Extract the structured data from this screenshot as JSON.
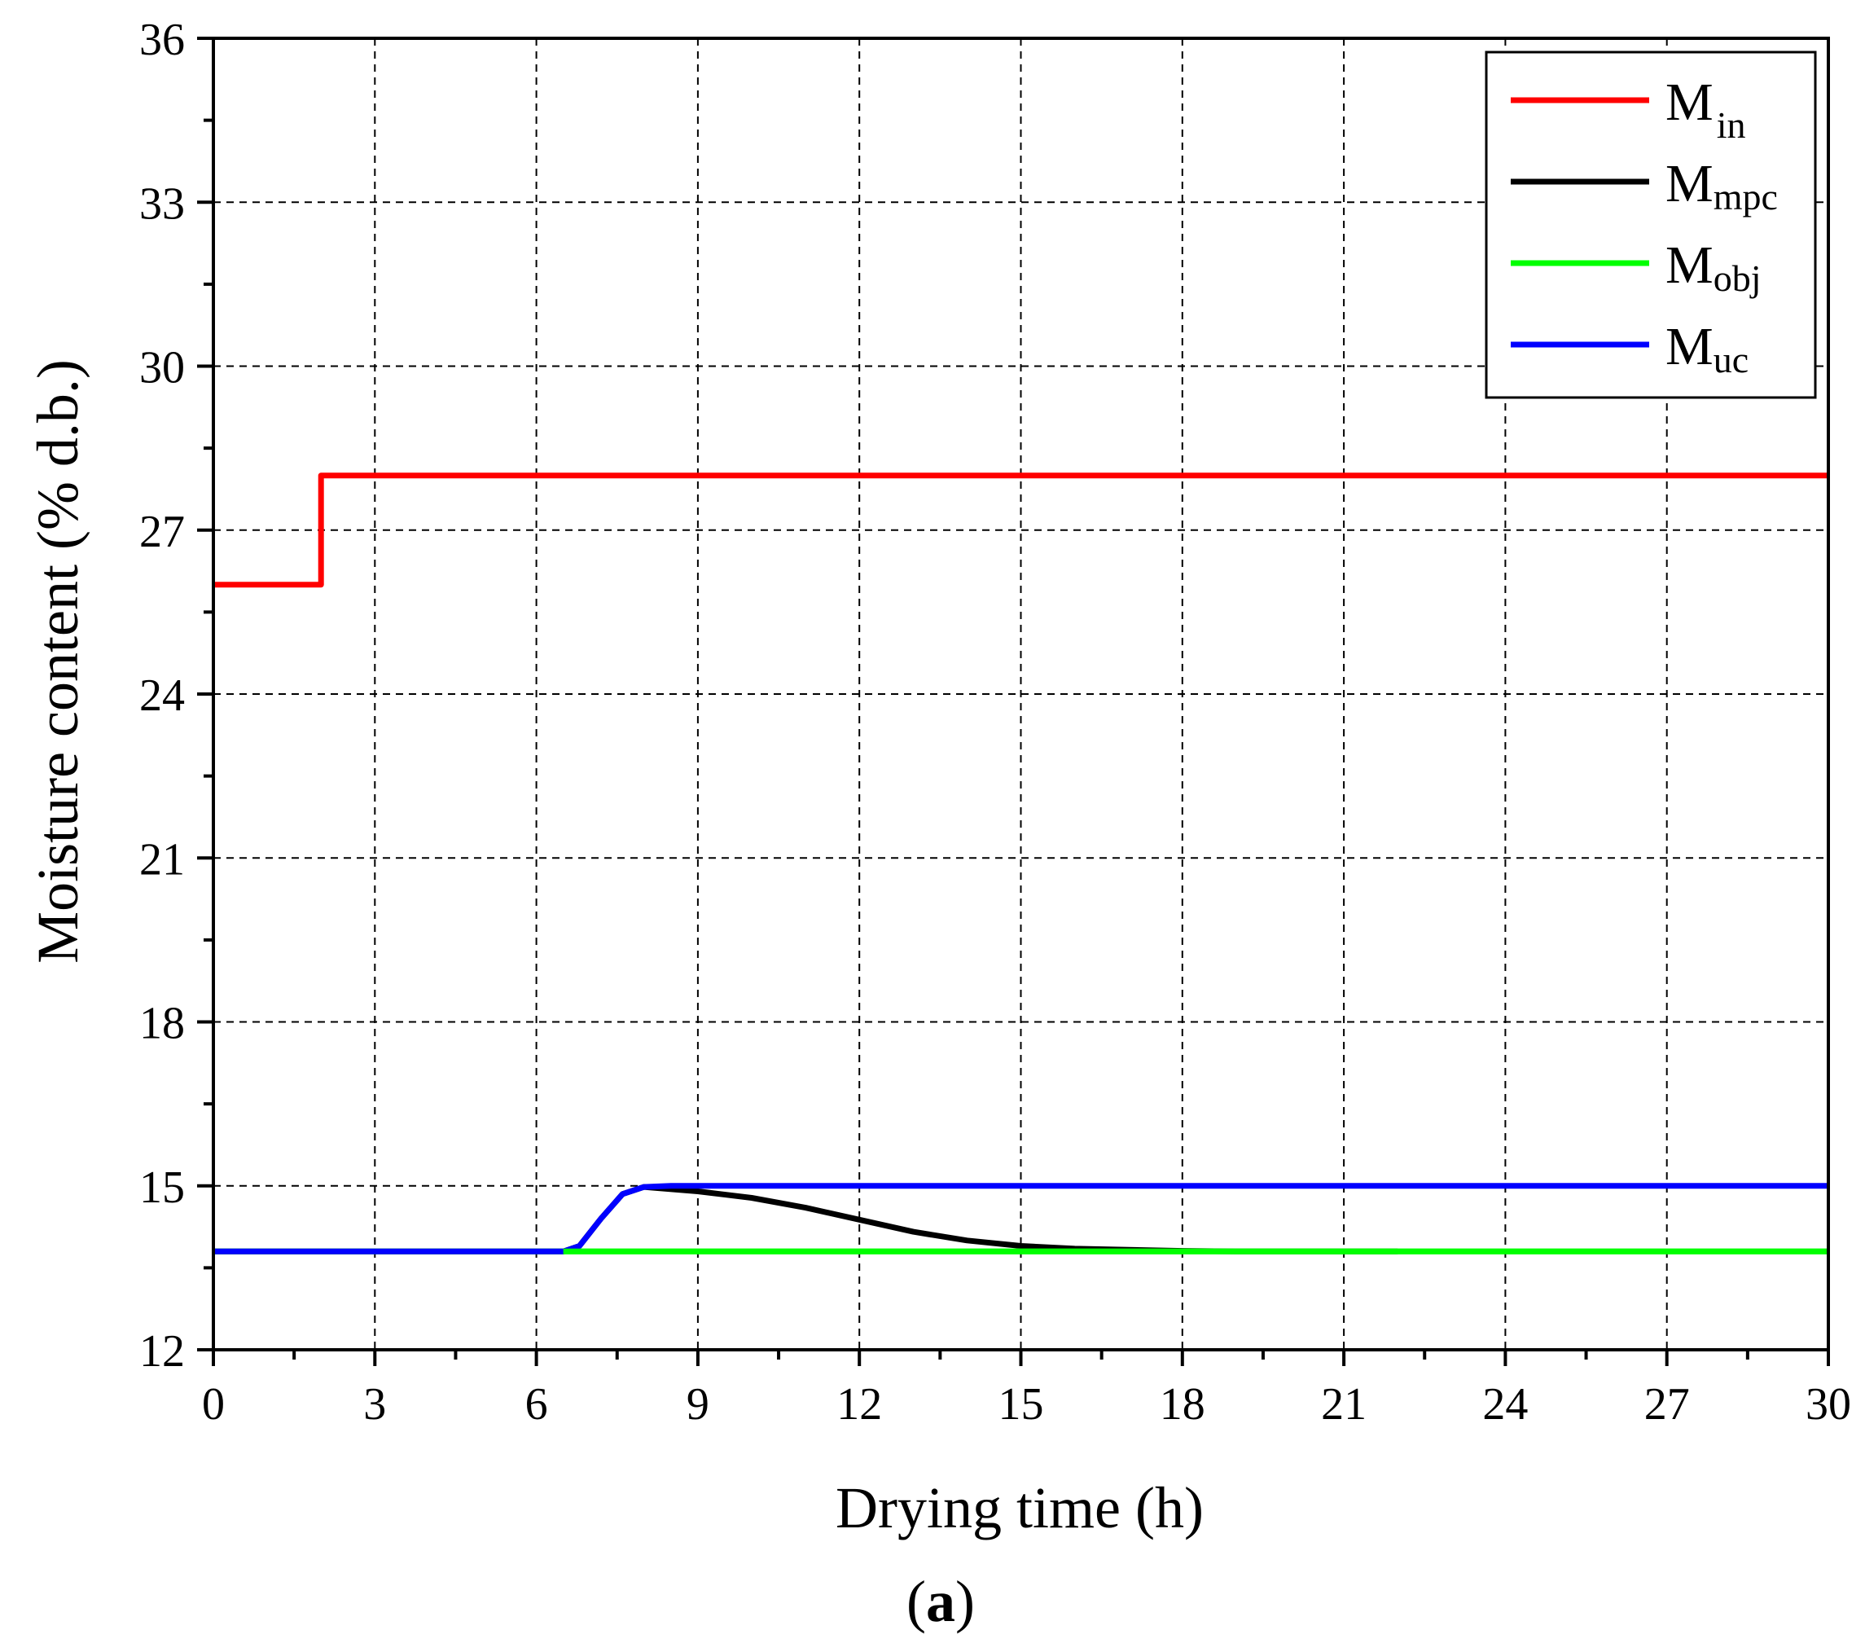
{
  "chart_data": {
    "type": "line",
    "title": "",
    "xlabel": "Drying time (h)",
    "ylabel": "Moisture content (% d.b.)",
    "panel_label": {
      "open": "(",
      "letter": "a",
      "close": ")"
    },
    "xlim": [
      0,
      30
    ],
    "ylim": [
      12,
      36
    ],
    "xticks": [
      0,
      3,
      6,
      9,
      12,
      15,
      18,
      21,
      24,
      27,
      30
    ],
    "yticks": [
      12,
      15,
      18,
      21,
      24,
      27,
      30,
      33,
      36
    ],
    "grid": true,
    "legend_position": "top-right",
    "series": [
      {
        "name": "M_in",
        "label_main": "M",
        "label_sub": "in",
        "color": "#ff0000",
        "x": [
          0,
          2,
          2,
          30
        ],
        "y": [
          26,
          26,
          28,
          28
        ]
      },
      {
        "name": "M_mpc",
        "label_main": "M",
        "label_sub": "mpc",
        "color": "#000000",
        "x": [
          0,
          6.5,
          6.8,
          7.2,
          7.6,
          8.0,
          9.0,
          10.0,
          11.0,
          12.0,
          13.0,
          14.0,
          15.0,
          16.0,
          17.0,
          18.0,
          19.0,
          20.0,
          21.0,
          22.0
        ],
        "y": [
          13.8,
          13.8,
          13.9,
          14.4,
          14.85,
          14.98,
          14.9,
          14.78,
          14.6,
          14.38,
          14.16,
          14.0,
          13.9,
          13.85,
          13.83,
          13.81,
          13.8,
          13.8,
          13.8,
          13.8
        ]
      },
      {
        "name": "M_obj",
        "label_main": "M",
        "label_sub": "obj",
        "color": "#00ff00",
        "x": [
          0,
          30
        ],
        "y": [
          13.8,
          13.8
        ]
      },
      {
        "name": "M_uc",
        "label_main": "M",
        "label_sub": "uc",
        "color": "#0000ff",
        "x": [
          0,
          6.5,
          6.8,
          7.2,
          7.6,
          8.0,
          8.5,
          30
        ],
        "y": [
          13.8,
          13.8,
          13.9,
          14.4,
          14.85,
          14.98,
          15.0,
          15.0
        ]
      }
    ]
  }
}
